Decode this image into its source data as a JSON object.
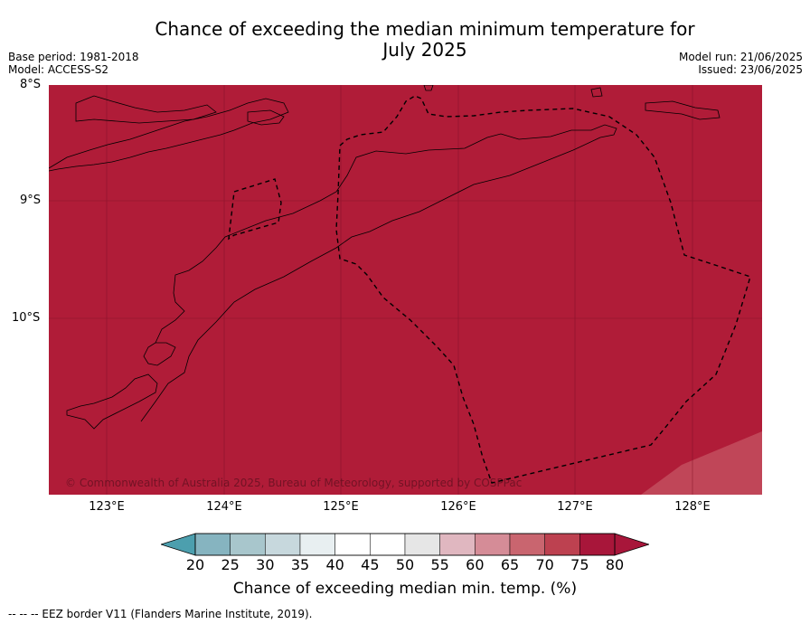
{
  "title_line1": "Chance of exceeding the median minimum temperature for",
  "title_line2": "July 2025",
  "base_period": "Base period: 1981-2018",
  "model": "Model: ACCESS-S2",
  "model_run": "Model run: 21/06/2025",
  "issued": "Issued: 23/06/2025",
  "lat_labels": [
    "8°S",
    "9°S",
    "10°S"
  ],
  "lon_labels": [
    "123°E",
    "124°E",
    "125°E",
    "126°E",
    "127°E",
    "128°E"
  ],
  "copyright": "© Commonwealth of Australia 2025, Bureau of Meteorology, supported by COSPPac",
  "colorbar": {
    "ticks": [
      "20",
      "25",
      "30",
      "35",
      "40",
      "45",
      "50",
      "55",
      "60",
      "65",
      "70",
      "75",
      "80"
    ],
    "colors": [
      "#5fa7b5",
      "#86b4c0",
      "#a8c6cc",
      "#c7d8dd",
      "#e8eff1",
      "#ffffff",
      "#ffffff",
      "#e6e6e6",
      "#e0b7c0",
      "#d58c97",
      "#c9656f",
      "#bd4150",
      "#a8163a"
    ],
    "label": "Chance of exceeding median min. temp. (%)"
  },
  "colors": {
    "main_fill": "#b01c38",
    "lighter_fill": "#c04658",
    "left_extend": "#4c9fae",
    "right_extend": "#a8163a"
  },
  "footer": "--  --  -- EEZ border V11 (Flanders Marine Institute, 2019)."
}
